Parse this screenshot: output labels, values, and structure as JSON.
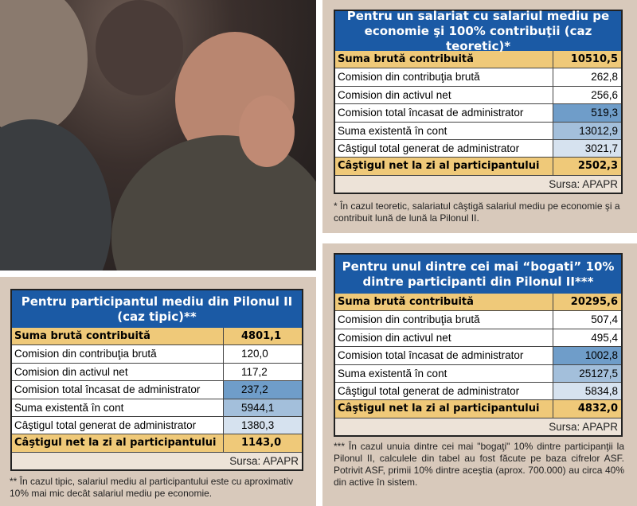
{
  "colors": {
    "header": "#1b5aa5",
    "gold": "#efc979",
    "blue_dark": "#6f9dc9",
    "blue_mid": "#a3bfdb",
    "blue_light": "#d6e2ef",
    "panel": "#d8c9bb"
  },
  "row_labels": [
    "Suma brută contribuită",
    "Comision din contribuţia brută",
    "Comision din activul net",
    "Comision total încasat de administrator",
    "Suma existentă în cont",
    "Câştigul total generat de administrator",
    "Câştigul net la zi al participantului"
  ],
  "tables": [
    {
      "title": "Pentru un salariat cu salariul mediu pe economie şi 100% contribuţii (caz teoretic)*",
      "values": [
        "10510,5",
        "262,8",
        "256,6",
        "519,3",
        "13012,9",
        "3021,7",
        "2502,3"
      ],
      "source": "Sursa: APAPR",
      "note": "* În cazul teoretic, salariatul câştigă salariul mediu pe economie şi a contribuit lună de lună la Pilonul II."
    },
    {
      "title": "Pentru participantul mediu din Pilonul II (caz tipic)**",
      "values": [
        "4801,1",
        "120,0",
        "117,2",
        "237,2",
        "5944,1",
        "1380,3",
        "1143,0"
      ],
      "source": "Sursa: APAPR",
      "note": "** În cazul tipic, salariul mediu al participantului este cu aproximativ 10% mai mic decât salariul mediu pe economie."
    },
    {
      "title": "Pentru unul dintre cei mai “bogati” 10% dintre participanti din Pilonul II***",
      "values": [
        "20295,6",
        "507,4",
        "495,4",
        "1002,8",
        "25127,5",
        "5834,8",
        "4832,0"
      ],
      "source": "Sursa: APAPR",
      "note": "*** În cazul unuia dintre cei mai \"bogaţi\" 10% dintre participanţii la Pilonul II, calculele din tabel au fost făcute pe baza cifrelor ASF. Potrivit ASF, primii 10% dintre aceştia (aprox. 700.000) au circa 40% din active în sistem."
    }
  ]
}
